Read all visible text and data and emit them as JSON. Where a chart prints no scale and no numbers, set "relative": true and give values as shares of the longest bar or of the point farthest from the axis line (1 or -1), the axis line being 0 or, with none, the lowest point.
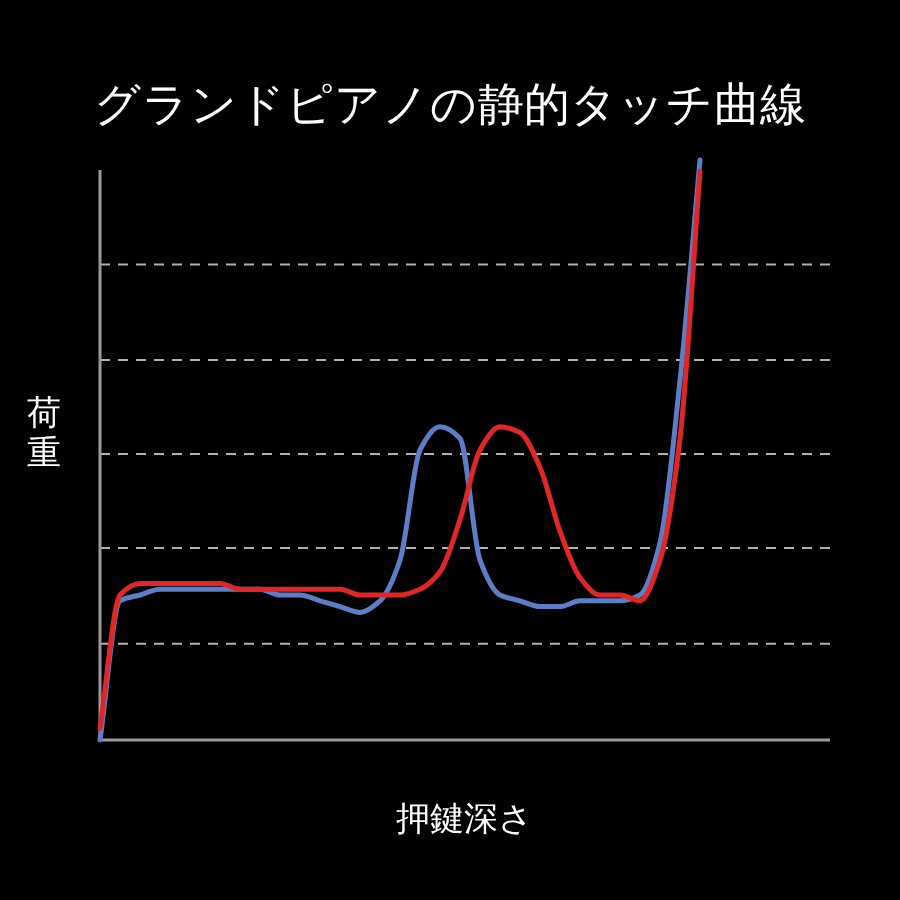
{
  "chart_data": {
    "type": "line",
    "title": "グランドピアノの静的タッチ曲線",
    "xlabel": "押鍵深さ",
    "ylabel": "荷重",
    "relative": true,
    "categories": [
      null,
      null,
      null,
      null,
      null,
      null,
      null,
      null,
      null,
      null,
      null,
      null,
      null,
      null,
      null,
      null,
      null,
      null,
      null,
      null,
      null,
      null,
      null,
      null,
      null,
      null,
      null,
      null,
      null,
      null,
      null,
      null,
      null,
      null,
      null,
      null,
      null
    ],
    "series": [
      {
        "color": "#5b7ec6",
        "values": [
          0,
          0.24,
          0.25,
          0.26,
          0.26,
          0.26,
          0.26,
          0.26,
          0.26,
          0.25,
          0.25,
          0.24,
          0.23,
          0.22,
          0.24,
          0.31,
          0.5,
          0.54,
          0.52,
          0.31,
          0.25,
          0.24,
          0.23,
          0.23,
          0.24,
          0.24,
          0.24,
          0.25,
          0.34,
          0.62,
          1,
          null,
          null,
          null,
          null,
          null,
          null
        ]
      },
      {
        "color": "#e02626",
        "values": [
          0.02,
          0.25,
          0.27,
          0.27,
          0.27,
          0.27,
          0.27,
          0.26,
          0.26,
          0.26,
          0.26,
          0.26,
          0.26,
          0.25,
          0.25,
          0.25,
          0.26,
          0.29,
          0.38,
          0.5,
          0.54,
          0.53,
          0.47,
          0.36,
          0.28,
          0.25,
          0.25,
          0.24,
          0.31,
          0.52,
          0.98,
          null,
          null,
          null,
          null,
          null,
          null
        ]
      }
    ],
    "ref_lines": [
      {
        "axis": "y",
        "value": 0.82,
        "color": "#b0b0b0",
        "line_style": "dashed"
      },
      {
        "axis": "y",
        "value": 0.655,
        "color": "#b0b0b0",
        "line_style": "dashed"
      },
      {
        "axis": "y",
        "value": 0.493,
        "color": "#b0b0b0",
        "line_style": "dashed"
      },
      {
        "axis": "y",
        "value": 0.331,
        "color": "#b0b0b0",
        "line_style": "dashed"
      },
      {
        "axis": "y",
        "value": 0.166,
        "color": "#b0b0b0",
        "line_style": "dashed"
      }
    ]
  }
}
